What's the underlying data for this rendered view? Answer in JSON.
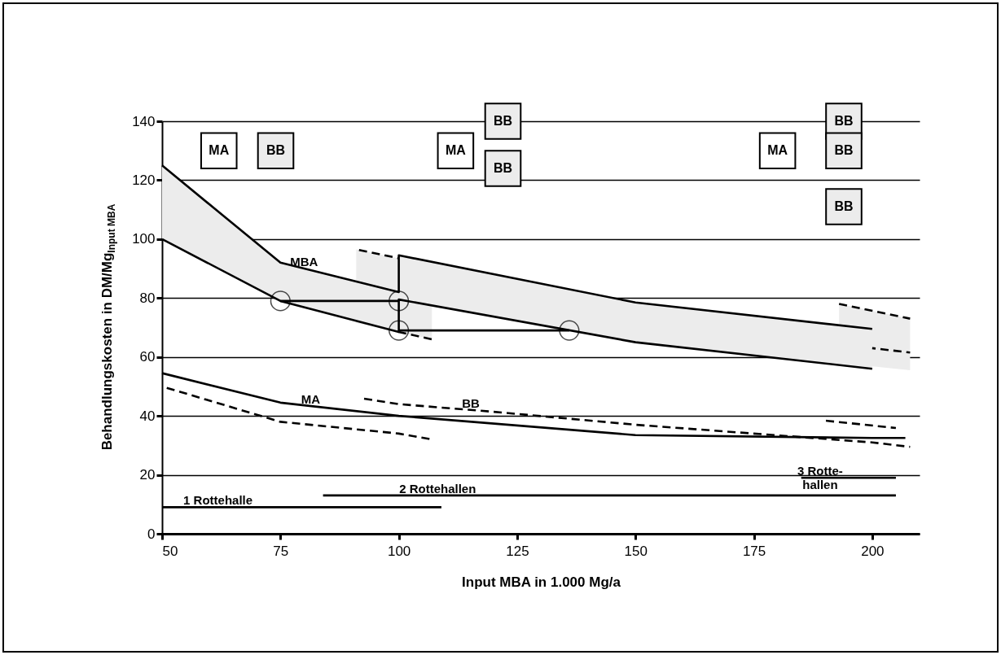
{
  "chart_data": {
    "type": "line",
    "xlabel": "Input MBA in 1.000 Mg/a",
    "ylabel": "Behandlungskosten in DM/Mg$_{Input MBA}$",
    "xlim": [
      50,
      210
    ],
    "ylim": [
      0,
      140
    ],
    "xticks": [
      50,
      75,
      100,
      125,
      150,
      175,
      200
    ],
    "yticks": [
      0,
      20,
      40,
      60,
      80,
      100,
      120,
      140
    ],
    "grid": "y",
    "series": [
      {
        "name": "MBA",
        "color": "#000000",
        "line_style": "solid",
        "x": [
          50,
          75,
          100,
          100,
          150,
          200
        ],
        "values": [
          125,
          92,
          82,
          94.5,
          78.5,
          69.5
        ],
        "lower": [
          100,
          79,
          68.5,
          79.5,
          65,
          56
        ],
        "upper": [
          125,
          92,
          82,
          94.5,
          78.5,
          69.5
        ]
      },
      {
        "color": "#000000",
        "line_style": "solid",
        "x": [
          50,
          75,
          100,
          100,
          150,
          200
        ],
        "values": [
          100,
          79,
          68.5,
          79.5,
          65,
          56
        ]
      },
      {
        "color": "#000000",
        "line_style": "dashed",
        "x": [
          91,
          100
        ],
        "values": [
          96.5,
          93.5
        ],
        "lower": [
          71.5,
          68.5
        ],
        "upper": [
          96.5,
          93.5
        ]
      },
      {
        "color": "#000000",
        "line_style": "dashed",
        "x": [
          100,
          107
        ],
        "values": [
          68.5,
          66
        ],
        "lower": [
          68.5,
          66
        ],
        "upper": [
          79.5,
          77.5
        ]
      },
      {
        "color": "#000000",
        "line_style": "dashed",
        "x": [
          193,
          208
        ],
        "values": [
          78,
          73
        ],
        "lower": [
          58,
          55.5
        ],
        "upper": [
          78,
          73
        ]
      },
      {
        "color": "#000000",
        "line_style": "dashed",
        "x": [
          200,
          208
        ],
        "values": [
          63,
          61.5
        ]
      },
      {
        "name": "MA",
        "color": "#000000",
        "line_style": "solid",
        "x": [
          50,
          75,
          100,
          150,
          200,
          207
        ],
        "values": [
          54.5,
          44.5,
          40,
          33.5,
          32.5,
          32.5
        ]
      },
      {
        "color": "#000000",
        "line_style": "dashed",
        "x": [
          50,
          75,
          100,
          107
        ],
        "values": [
          50,
          38,
          34,
          32
        ]
      },
      {
        "name": "BB",
        "color": "#000000",
        "line_style": "dashed",
        "x": [
          92,
          100,
          120,
          150,
          200,
          208
        ],
        "values": [
          46,
          44,
          41.4,
          37,
          31,
          29.5
        ]
      },
      {
        "color": "#000000",
        "line_style": "dashed",
        "x": [
          190,
          205
        ],
        "values": [
          38.4,
          35.9
        ]
      },
      {
        "color": "#000000",
        "line_style": "solid",
        "marker": "circle",
        "x": [
          75,
          100
        ],
        "values": [
          79,
          79
        ]
      },
      {
        "color": "#000000",
        "line_style": "solid",
        "marker": "circle",
        "x": [
          100,
          136
        ],
        "values": [
          69,
          69
        ]
      },
      {
        "name": "1 Rottehalle",
        "color": "#000000",
        "line_style": "solid",
        "x": [
          50,
          109
        ],
        "values": [
          9,
          9
        ]
      },
      {
        "name": "2 Rottehallen",
        "color": "#000000",
        "line_style": "solid",
        "x": [
          84,
          205
        ],
        "values": [
          13,
          13
        ]
      },
      {
        "name": "3 Rotte-\nhallen",
        "color": "#000000",
        "line_style": "solid",
        "x": [
          185,
          205
        ],
        "values": [
          19,
          19
        ]
      },
      {
        "type": "scatter",
        "color": "#ffffff",
        "marker": "square",
        "x": [
          62,
          112,
          180
        ],
        "values": [
          130,
          130,
          130
        ],
        "value_labels": [
          "MA",
          "MA",
          "MA"
        ]
      },
      {
        "type": "scatter",
        "color": "#ececec",
        "marker": "square",
        "x": [
          74,
          122,
          122,
          194,
          194,
          194
        ],
        "values": [
          130,
          140,
          124,
          140,
          130,
          111
        ],
        "value_labels": [
          "BB",
          "BB",
          "BB",
          "BB",
          "BB",
          "BB"
        ]
      }
    ]
  }
}
